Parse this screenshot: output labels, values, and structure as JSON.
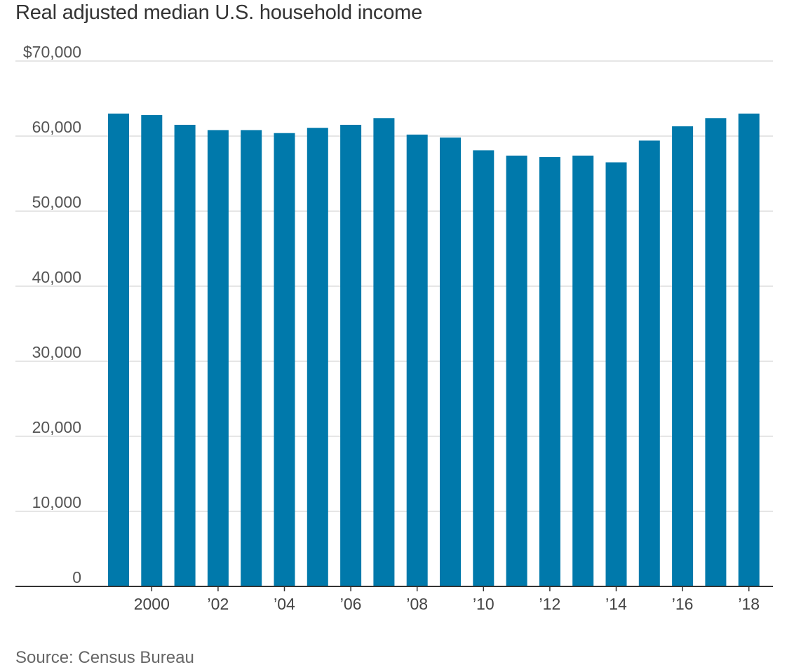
{
  "chart_data": {
    "type": "bar",
    "title": "Real adjusted median U.S. household income",
    "source": "Source: Census Bureau",
    "x": [
      1999,
      2000,
      2001,
      2002,
      2003,
      2004,
      2005,
      2006,
      2007,
      2008,
      2009,
      2010,
      2011,
      2012,
      2013,
      2014,
      2015,
      2016,
      2017,
      2018
    ],
    "values": [
      63000,
      62800,
      61500,
      60800,
      60800,
      60400,
      61100,
      61500,
      62400,
      60200,
      59800,
      58100,
      57400,
      57200,
      57400,
      56500,
      59400,
      61300,
      62400,
      63000
    ],
    "ylim": [
      0,
      70000
    ],
    "yticks": [
      {
        "value": 0,
        "label": "0"
      },
      {
        "value": 10000,
        "label": "10,000"
      },
      {
        "value": 20000,
        "label": "20,000"
      },
      {
        "value": 30000,
        "label": "30,000"
      },
      {
        "value": 40000,
        "label": "40,000"
      },
      {
        "value": 50000,
        "label": "50,000"
      },
      {
        "value": 60000,
        "label": "60,000"
      },
      {
        "value": 70000,
        "label": "$70,000"
      }
    ],
    "xticks": [
      {
        "value": 2000,
        "label": "2000"
      },
      {
        "value": 2002,
        "label": "’02"
      },
      {
        "value": 2004,
        "label": "’04"
      },
      {
        "value": 2006,
        "label": "’06"
      },
      {
        "value": 2008,
        "label": "’08"
      },
      {
        "value": 2010,
        "label": "’10"
      },
      {
        "value": 2012,
        "label": "’12"
      },
      {
        "value": 2014,
        "label": "’14"
      },
      {
        "value": 2016,
        "label": "’16"
      },
      {
        "value": 2018,
        "label": "’18"
      }
    ],
    "grid": true,
    "colors": {
      "bar": "#0079ab",
      "grid": "#dddddd",
      "axis": "#333333"
    }
  }
}
